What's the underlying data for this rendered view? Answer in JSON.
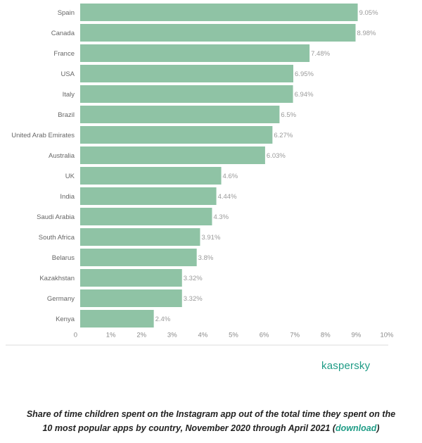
{
  "chart_data": {
    "type": "bar",
    "orientation": "horizontal",
    "categories": [
      "Spain",
      "Canada",
      "France",
      "USA",
      "Italy",
      "Brazil",
      "United Arab Emirates",
      "Australia",
      "UK",
      "India",
      "Saudi Arabia",
      "South Africa",
      "Belarus",
      "Kazakhstan",
      "Germany",
      "Kenya"
    ],
    "values": [
      9.05,
      8.98,
      7.48,
      6.95,
      6.94,
      6.5,
      6.27,
      6.03,
      4.6,
      4.44,
      4.3,
      3.91,
      3.8,
      3.32,
      3.32,
      2.4
    ],
    "value_labels": [
      "9.05%",
      "8.98%",
      "7.48%",
      "6.95%",
      "6.94%",
      "6.5%",
      "6.27%",
      "6.03%",
      "4.6%",
      "4.44%",
      "4.3%",
      "3.91%",
      "3.8%",
      "3.32%",
      "3.32%",
      "2.4%"
    ],
    "ticks": [
      0,
      1,
      2,
      3,
      4,
      5,
      6,
      7,
      8,
      9,
      10
    ],
    "tick_labels": [
      "0",
      "1%",
      "2%",
      "3%",
      "4%",
      "5%",
      "6%",
      "7%",
      "8%",
      "9%",
      "10%"
    ],
    "xlim": [
      0,
      10
    ],
    "bar_color": "#8fc3a5",
    "grid": false
  },
  "brand": {
    "logo_text": "kaspersky",
    "color": "#1f9c86"
  },
  "caption": {
    "line1": "Share of time children spent on the Instagram app out of the total time they spent on the",
    "line2_prefix": "10 most popular apps by country, November 2020 through April 2021 (",
    "link_text": "download",
    "line2_suffix": ")"
  }
}
